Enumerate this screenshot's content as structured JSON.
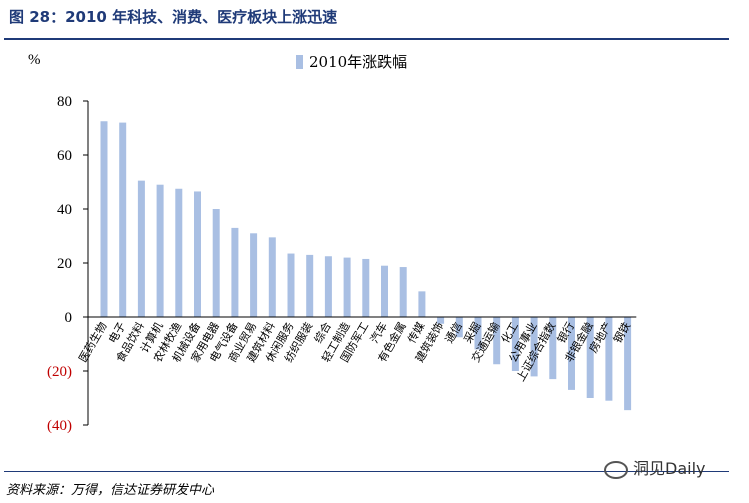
{
  "title": "图 28：2010 年科技、消费、医疗板块上涨迅速",
  "source": "资料来源：万得，信达证券研发中心",
  "watermark": "洞见Daily",
  "chart_data": {
    "type": "bar",
    "ylabel": "%",
    "ylim": [
      -40,
      80
    ],
    "yticks": [
      80,
      60,
      40,
      20,
      0,
      -20,
      -40
    ],
    "ytick_labels": [
      "80",
      "60",
      "40",
      "20",
      "0",
      "(20)",
      "(40)"
    ],
    "negative_tick_color": "#c00000",
    "bar_color": "#a9bfe3",
    "legend_position": "top-center",
    "categories": [
      "医药生物",
      "电子",
      "食品饮料",
      "计算机",
      "农林牧渔",
      "机械设备",
      "家用电器",
      "电气设备",
      "商业贸易",
      "建筑材料",
      "休闲服务",
      "纺织服装",
      "综合",
      "轻工制造",
      "国防军工",
      "汽车",
      "有色金属",
      "传媒",
      "建筑装饰",
      "通信",
      "采掘",
      "交通运输",
      "化工",
      "公用事业",
      "上证综合指数",
      "银行",
      "非银金融",
      "房地产",
      "钢铁"
    ],
    "series": [
      {
        "name": "2010年涨跌幅",
        "values": [
          72.5,
          72,
          50.5,
          49,
          47.5,
          46.5,
          40,
          33,
          31,
          29.5,
          23.5,
          23,
          22.5,
          22,
          21.5,
          19,
          18.5,
          9.5,
          -2.5,
          -7.5,
          -12,
          -17.5,
          -20,
          -22,
          -23,
          -27,
          -30,
          -31,
          -34.5
        ]
      }
    ]
  }
}
